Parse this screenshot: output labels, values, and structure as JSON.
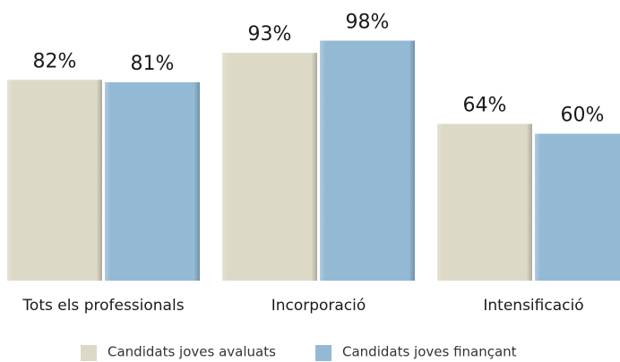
{
  "chart_data": {
    "type": "bar",
    "categories": [
      "Tots els professionals",
      "Incorporació",
      "Intensificació"
    ],
    "series": [
      {
        "name": "Candidats joves avaluats",
        "color": "#dcd9c6",
        "values": [
          82,
          93,
          64
        ],
        "value_labels": [
          "82%",
          "93%",
          "64%"
        ]
      },
      {
        "name": "Candidats joves finançant",
        "color": "#93b9d4",
        "values": [
          81,
          98,
          60
        ],
        "value_labels": [
          "81%",
          "98%",
          "60%"
        ]
      }
    ],
    "ylim": [
      0,
      100
    ],
    "legend": "bottom"
  }
}
